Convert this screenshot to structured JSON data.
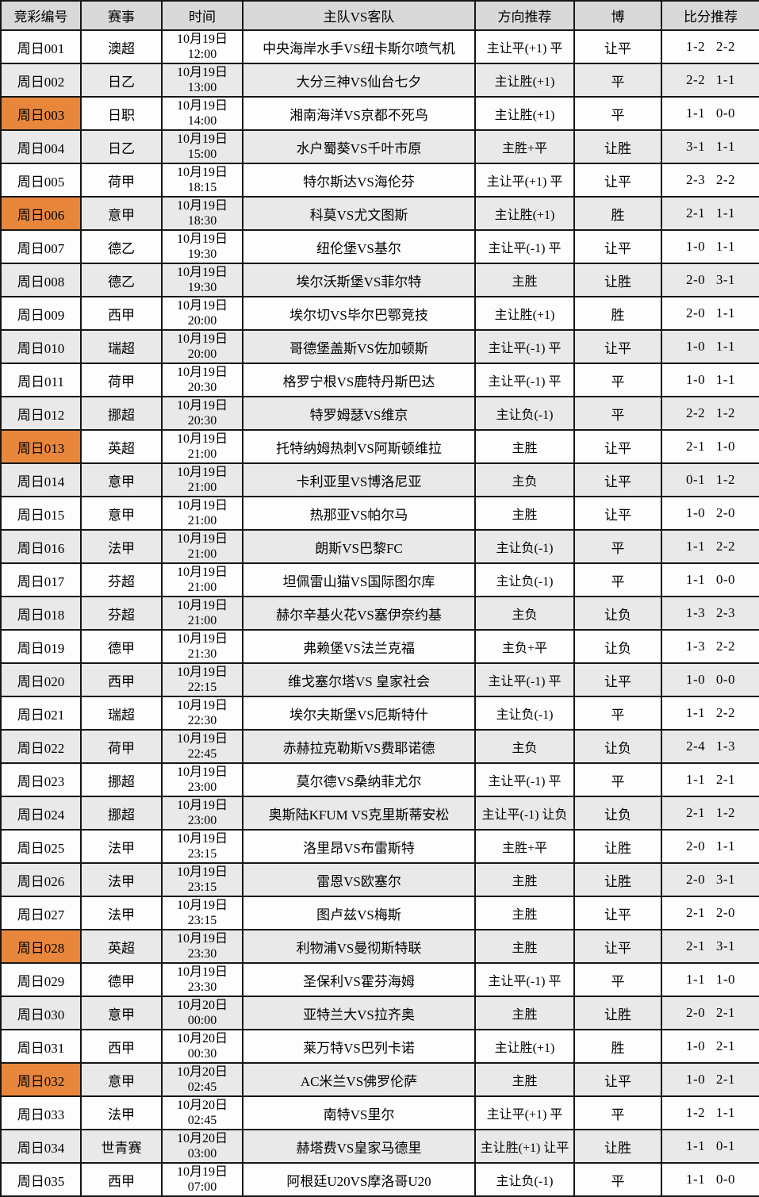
{
  "table": {
    "headers": [
      "竞彩编号",
      "赛事",
      "时间",
      "主队VS客队",
      "方向推荐",
      "博",
      "比分推荐"
    ],
    "rows": [
      {
        "id": "周日001",
        "league": "澳超",
        "date": "10月19日",
        "time": "12:00",
        "match": "中央海岸水手VS纽卡斯尔喷气机",
        "direction": "主让平(+1) 平",
        "bet": "让平",
        "score": "1-2 2-2",
        "highlight": false
      },
      {
        "id": "周日002",
        "league": "日乙",
        "date": "10月19日",
        "time": "13:00",
        "match": "大分三神VS仙台七夕",
        "direction": "主让胜(+1)",
        "bet": "平",
        "score": "2-2 1-1",
        "highlight": false
      },
      {
        "id": "周日003",
        "league": "日职",
        "date": "10月19日",
        "time": "14:00",
        "match": "湘南海洋VS京都不死鸟",
        "direction": "主让胜(+1)",
        "bet": "平",
        "score": "1-1 0-0",
        "highlight": true
      },
      {
        "id": "周日004",
        "league": "日乙",
        "date": "10月19日",
        "time": "15:00",
        "match": "水户蜀葵VS千叶市原",
        "direction": "主胜+平",
        "bet": "让胜",
        "score": "3-1 1-1",
        "highlight": false
      },
      {
        "id": "周日005",
        "league": "荷甲",
        "date": "10月19日",
        "time": "18:15",
        "match": "特尔斯达VS海伦芬",
        "direction": "主让平(+1) 平",
        "bet": "让平",
        "score": "2-3 2-2",
        "highlight": false
      },
      {
        "id": "周日006",
        "league": "意甲",
        "date": "10月19日",
        "time": "18:30",
        "match": "科莫VS尤文图斯",
        "direction": "主让胜(+1)",
        "bet": "胜",
        "score": "2-1 1-1",
        "highlight": true
      },
      {
        "id": "周日007",
        "league": "德乙",
        "date": "10月19日",
        "time": "19:30",
        "match": "纽伦堡VS基尔",
        "direction": "主让平(-1) 平",
        "bet": "让平",
        "score": "1-0 1-1",
        "highlight": false
      },
      {
        "id": "周日008",
        "league": "德乙",
        "date": "10月19日",
        "time": "19:30",
        "match": "埃尔沃斯堡VS菲尔特",
        "direction": "主胜",
        "bet": "让胜",
        "score": "2-0 3-1",
        "highlight": false
      },
      {
        "id": "周日009",
        "league": "西甲",
        "date": "10月19日",
        "time": "20:00",
        "match": "埃尔切VS毕尔巴鄂竞技",
        "direction": "主让胜(+1)",
        "bet": "胜",
        "score": "2-0 1-1",
        "highlight": false
      },
      {
        "id": "周日010",
        "league": "瑞超",
        "date": "10月19日",
        "time": "20:00",
        "match": "哥德堡盖斯VS佐加顿斯",
        "direction": "主让平(-1) 平",
        "bet": "让平",
        "score": "1-0 1-1",
        "highlight": false
      },
      {
        "id": "周日011",
        "league": "荷甲",
        "date": "10月19日",
        "time": "20:30",
        "match": "格罗宁根VS鹿特丹斯巴达",
        "direction": "主让平(-1) 平",
        "bet": "平",
        "score": "1-0 1-1",
        "highlight": false
      },
      {
        "id": "周日012",
        "league": "挪超",
        "date": "10月19日",
        "time": "20:30",
        "match": "特罗姆瑟VS维京",
        "direction": "主让负(-1)",
        "bet": "平",
        "score": "2-2 1-2",
        "highlight": false
      },
      {
        "id": "周日013",
        "league": "英超",
        "date": "10月19日",
        "time": "21:00",
        "match": "托特纳姆热刺VS阿斯顿维拉",
        "direction": "主胜",
        "bet": "让平",
        "score": "2-1 1-0",
        "highlight": true
      },
      {
        "id": "周日014",
        "league": "意甲",
        "date": "10月19日",
        "time": "21:00",
        "match": "卡利亚里VS博洛尼亚",
        "direction": "主负",
        "bet": "让平",
        "score": "0-1 1-2",
        "highlight": false
      },
      {
        "id": "周日015",
        "league": "意甲",
        "date": "10月19日",
        "time": "21:00",
        "match": "热那亚VS帕尔马",
        "direction": "主胜",
        "bet": "让平",
        "score": "1-0 2-0",
        "highlight": false
      },
      {
        "id": "周日016",
        "league": "法甲",
        "date": "10月19日",
        "time": "21:00",
        "match": "朗斯VS巴黎FC",
        "direction": "主让负(-1)",
        "bet": "平",
        "score": "1-1 2-2",
        "highlight": false
      },
      {
        "id": "周日017",
        "league": "芬超",
        "date": "10月19日",
        "time": "21:00",
        "match": "坦佩雷山猫VS国际图尔库",
        "direction": "主让负(-1)",
        "bet": "平",
        "score": "1-1 0-0",
        "highlight": false
      },
      {
        "id": "周日018",
        "league": "芬超",
        "date": "10月19日",
        "time": "21:00",
        "match": "赫尔辛基火花VS塞伊奈约基",
        "direction": "主负",
        "bet": "让负",
        "score": "1-3 2-3",
        "highlight": false
      },
      {
        "id": "周日019",
        "league": "德甲",
        "date": "10月19日",
        "time": "21:30",
        "match": "弗赖堡VS法兰克福",
        "direction": "主负+平",
        "bet": "让负",
        "score": "1-3 2-2",
        "highlight": false
      },
      {
        "id": "周日020",
        "league": "西甲",
        "date": "10月19日",
        "time": "22:15",
        "match": "维戈塞尔塔VS 皇家社会",
        "direction": "主让平(-1) 平",
        "bet": "让平",
        "score": "1-0 0-0",
        "highlight": false
      },
      {
        "id": "周日021",
        "league": "瑞超",
        "date": "10月19日",
        "time": "22:30",
        "match": "埃尔夫斯堡VS厄斯特什",
        "direction": "主让负(-1)",
        "bet": "平",
        "score": "1-1 2-2",
        "highlight": false
      },
      {
        "id": "周日022",
        "league": "荷甲",
        "date": "10月19日",
        "time": "22:45",
        "match": "赤赫拉克勒斯VS费耶诺德",
        "direction": "主负",
        "bet": "让负",
        "score": "2-4 1-3",
        "highlight": false
      },
      {
        "id": "周日023",
        "league": "挪超",
        "date": "10月19日",
        "time": "23:00",
        "match": "莫尔德VS桑纳菲尤尔",
        "direction": "主让平(-1) 平",
        "bet": "平",
        "score": "1-1 2-1",
        "highlight": false
      },
      {
        "id": "周日024",
        "league": "挪超",
        "date": "10月19日",
        "time": "23:00",
        "match": "奥斯陆KFUM VS克里斯蒂安松",
        "direction": "主让平(-1) 让负",
        "bet": "让负",
        "score": "2-1 1-2",
        "highlight": false
      },
      {
        "id": "周日025",
        "league": "法甲",
        "date": "10月19日",
        "time": "23:15",
        "match": "洛里昂VS布雷斯特",
        "direction": "主胜+平",
        "bet": "让胜",
        "score": "2-0 1-1",
        "highlight": false
      },
      {
        "id": "周日026",
        "league": "法甲",
        "date": "10月19日",
        "time": "23:15",
        "match": "雷恩VS欧塞尔",
        "direction": "主胜",
        "bet": "让胜",
        "score": "2-0 3-1",
        "highlight": false
      },
      {
        "id": "周日027",
        "league": "法甲",
        "date": "10月19日",
        "time": "23:15",
        "match": "图卢兹VS梅斯",
        "direction": "主胜",
        "bet": "让平",
        "score": "2-1 2-0",
        "highlight": false
      },
      {
        "id": "周日028",
        "league": "英超",
        "date": "10月19日",
        "time": "23:30",
        "match": "利物浦VS曼彻斯特联",
        "direction": "主胜",
        "bet": "让平",
        "score": "2-1 3-1",
        "highlight": true
      },
      {
        "id": "周日029",
        "league": "德甲",
        "date": "10月19日",
        "time": "23:30",
        "match": "圣保利VS霍芬海姆",
        "direction": "主让平(-1) 平",
        "bet": "平",
        "score": "1-1 1-0",
        "highlight": false
      },
      {
        "id": "周日030",
        "league": "意甲",
        "date": "10月20日",
        "time": "00:00",
        "match": "亚特兰大VS拉齐奥",
        "direction": "主胜",
        "bet": "让胜",
        "score": "2-0 2-1",
        "highlight": false
      },
      {
        "id": "周日031",
        "league": "西甲",
        "date": "10月20日",
        "time": "00:30",
        "match": "莱万特VS巴列卡诺",
        "direction": "主让胜(+1)",
        "bet": "胜",
        "score": "1-0 2-1",
        "highlight": false
      },
      {
        "id": "周日032",
        "league": "意甲",
        "date": "10月20日",
        "time": "02:45",
        "match": "AC米兰VS佛罗伦萨",
        "direction": "主胜",
        "bet": "让平",
        "score": "1-0 2-1",
        "highlight": true
      },
      {
        "id": "周日033",
        "league": "法甲",
        "date": "10月20日",
        "time": "02:45",
        "match": "南特VS里尔",
        "direction": "主让平(+1) 平",
        "bet": "平",
        "score": "1-2 1-1",
        "highlight": false
      },
      {
        "id": "周日034",
        "league": "世青赛",
        "date": "10月20日",
        "time": "03:00",
        "match": "赫塔费VS皇家马德里",
        "direction": "主让胜(+1) 让平",
        "bet": "让胜",
        "score": "1-1 0-1",
        "highlight": false
      },
      {
        "id": "周日035",
        "league": "西甲",
        "date": "10月19日",
        "time": "07:00",
        "match": "阿根廷U20VS摩洛哥U20",
        "direction": "主让负(-1)",
        "bet": "平",
        "score": "1-1 0-0",
        "highlight": false
      }
    ]
  },
  "colors": {
    "highlight": "#e8873c",
    "header_bg": "#d9d9d9",
    "row_odd_bg": "#fdfdfd",
    "row_even_bg": "#e9e9e9",
    "border": "#161616"
  }
}
